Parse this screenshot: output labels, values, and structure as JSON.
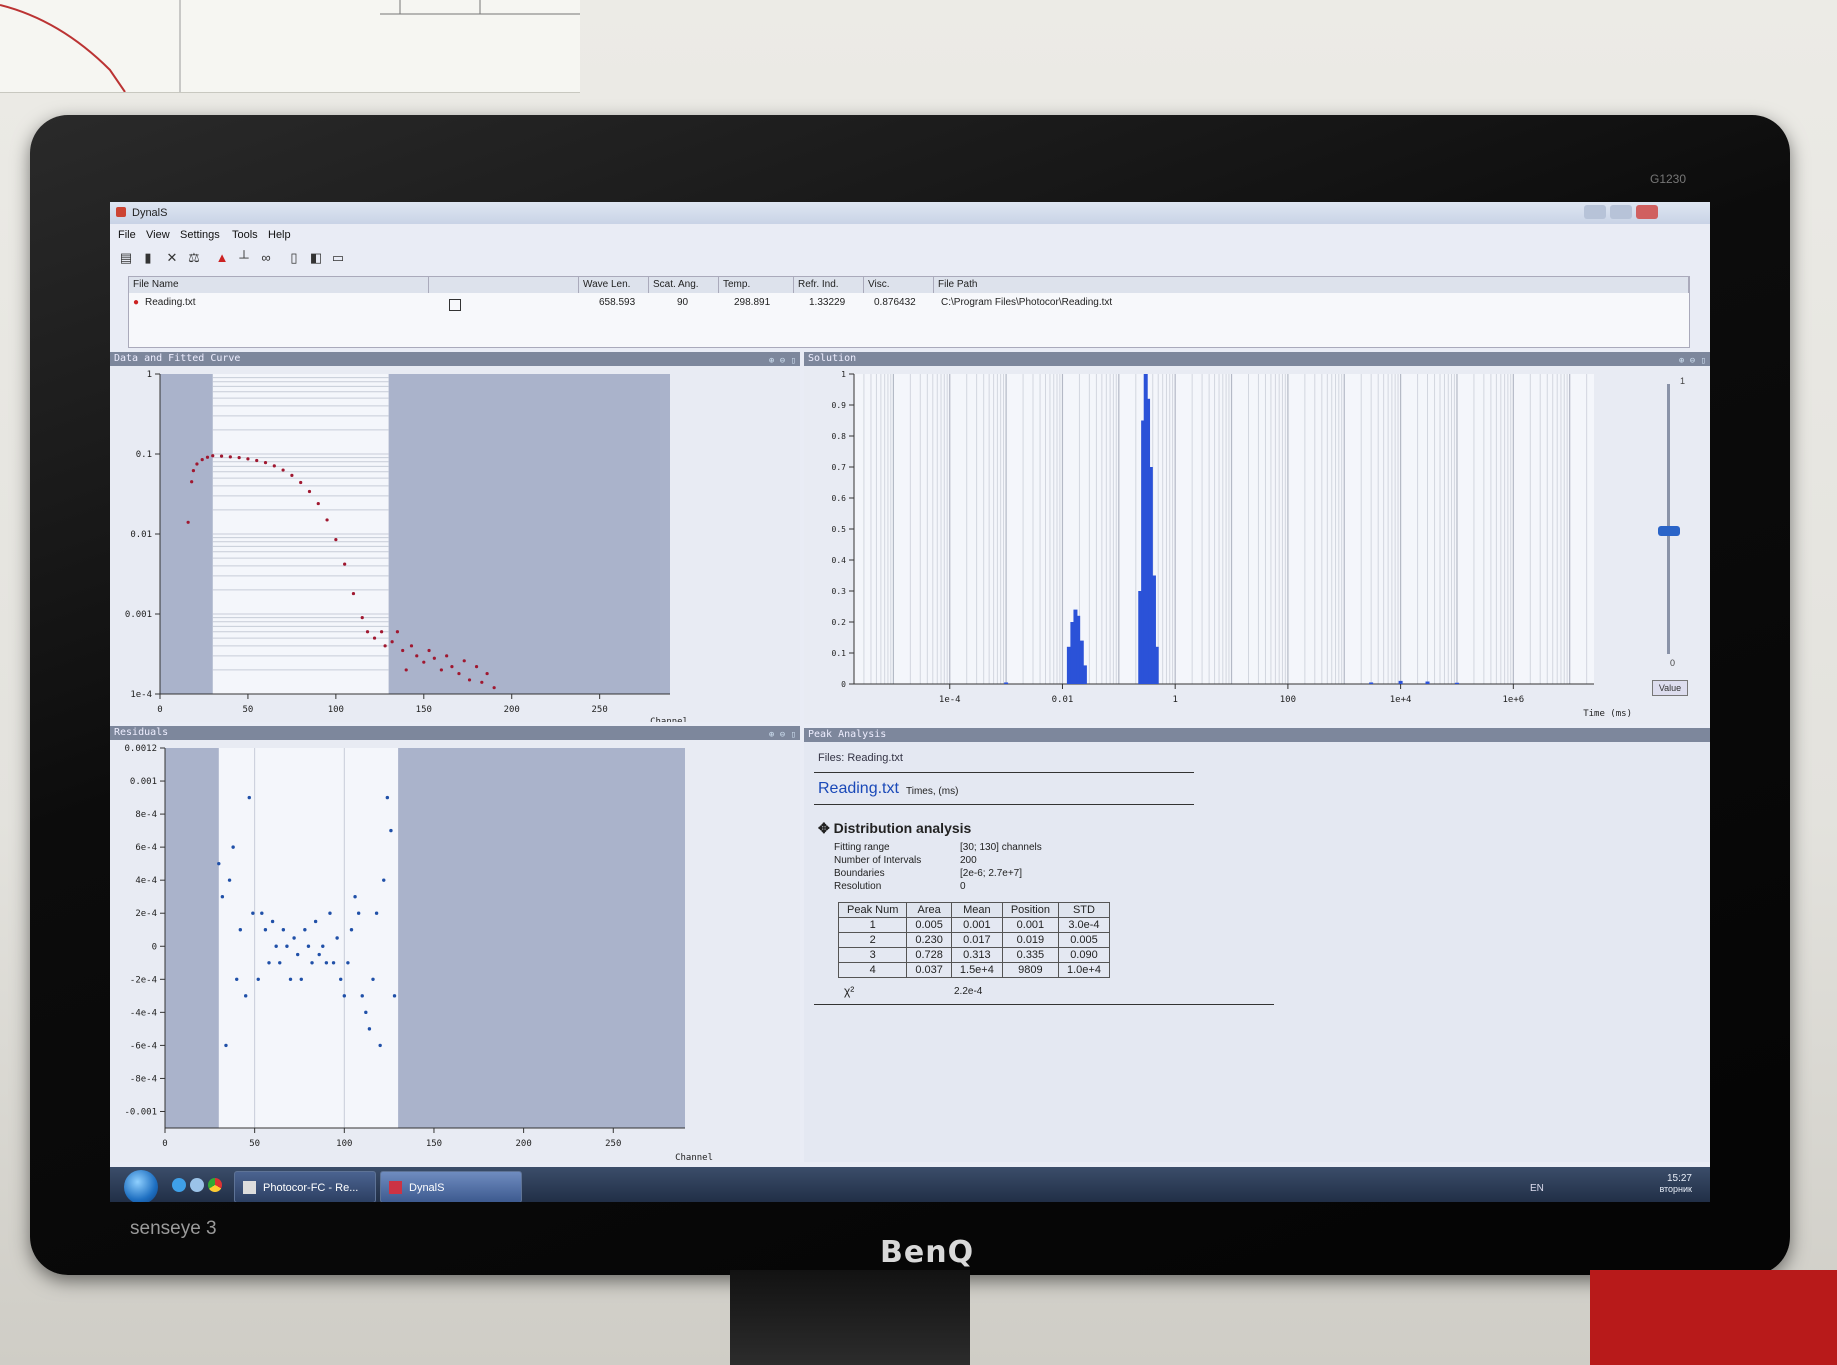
{
  "window": {
    "title": "DynalS"
  },
  "menu": [
    "File",
    "View",
    "Settings",
    "Tools",
    "Help"
  ],
  "toolbar_icons": [
    "open-icon",
    "delete-icon",
    "tools-icon",
    "scale-icon",
    "histogram-icon",
    "bar-chart-icon",
    "link-icon",
    "document-icon",
    "preview-icon",
    "print-icon"
  ],
  "file_table": {
    "headers": {
      "file_name": "File Name",
      "wave_len": "Wave Len.",
      "scat_ang": "Scat. Ang.",
      "temp": "Temp.",
      "refr_ind": "Refr. Ind.",
      "visc": "Visc.",
      "file_path": "File Path"
    },
    "row": {
      "file_name": "Reading.txt",
      "wave_len": "658.593",
      "scat_ang": "90",
      "temp": "298.891",
      "refr_ind": "1.33229",
      "visc": "0.876432",
      "file_path": "C:\\Program Files\\Photocor\\Reading.txt"
    }
  },
  "panels": {
    "fit": {
      "title": "Data and Fitted Curve"
    },
    "residuals": {
      "title": "Residuals"
    },
    "solution": {
      "title": "Solution"
    },
    "peak_analysis": {
      "title": "Peak Analysis"
    }
  },
  "peak_analysis": {
    "files_line": "Files: Reading.txt",
    "file_title": "Reading.txt",
    "times_unit": "Times, (ms)",
    "section_title": "Distribution analysis",
    "params": [
      {
        "label": "Fitting range",
        "value": "[30; 130] channels"
      },
      {
        "label": "Number of Intervals",
        "value": "200"
      },
      {
        "label": "Boundaries",
        "value": "[2e-6; 2.7e+7]"
      },
      {
        "label": "Resolution",
        "value": "0"
      }
    ],
    "table": {
      "headers": [
        "Peak Num",
        "Area",
        "Mean",
        "Position",
        "STD"
      ],
      "rows": [
        [
          "1",
          "0.005",
          "0.001",
          "0.001",
          "3.0e-4"
        ],
        [
          "2",
          "0.230",
          "0.017",
          "0.019",
          "0.005"
        ],
        [
          "3",
          "0.728",
          "0.313",
          "0.335",
          "0.090"
        ],
        [
          "4",
          "0.037",
          "1.5e+4",
          "9809",
          "1.0e+4"
        ]
      ]
    },
    "chi_label": "χ²",
    "chi_value": "2.2e-4"
  },
  "chart_data": [
    {
      "type": "scatter",
      "panel": "Data and Fitted Curve",
      "xlabel": "Channel",
      "x_ticks": [
        "0",
        "50",
        "100",
        "150",
        "200",
        "250"
      ],
      "y_ticks": [
        "1",
        "0.1",
        "0.01",
        "0.001",
        "1e-4"
      ],
      "xlim": [
        0,
        290
      ],
      "ylim": [
        0.0001,
        1
      ],
      "y_scale": "log",
      "fit_range": [
        30,
        130
      ],
      "points": [
        [
          16,
          0.014
        ],
        [
          18,
          0.045
        ],
        [
          19,
          0.062
        ],
        [
          21,
          0.075
        ],
        [
          24,
          0.085
        ],
        [
          27,
          0.091
        ],
        [
          30,
          0.095
        ],
        [
          35,
          0.094
        ],
        [
          40,
          0.092
        ],
        [
          45,
          0.09
        ],
        [
          50,
          0.087
        ],
        [
          55,
          0.083
        ],
        [
          60,
          0.078
        ],
        [
          65,
          0.071
        ],
        [
          70,
          0.063
        ],
        [
          75,
          0.054
        ],
        [
          80,
          0.044
        ],
        [
          85,
          0.034
        ],
        [
          90,
          0.024
        ],
        [
          95,
          0.015
        ],
        [
          100,
          0.0085
        ],
        [
          105,
          0.0042
        ],
        [
          110,
          0.0018
        ],
        [
          115,
          0.0009
        ],
        [
          118,
          0.0006
        ],
        [
          122,
          0.0005
        ],
        [
          126,
          0.0006
        ],
        [
          128,
          0.0004
        ],
        [
          132,
          0.00045
        ],
        [
          135,
          0.0006
        ],
        [
          138,
          0.00035
        ],
        [
          140,
          0.0002
        ],
        [
          143,
          0.0004
        ],
        [
          146,
          0.0003
        ],
        [
          150,
          0.00025
        ],
        [
          153,
          0.00035
        ],
        [
          156,
          0.00028
        ],
        [
          160,
          0.0002
        ],
        [
          163,
          0.0003
        ],
        [
          166,
          0.00022
        ],
        [
          170,
          0.00018
        ],
        [
          173,
          0.00026
        ],
        [
          176,
          0.00015
        ],
        [
          180,
          0.00022
        ],
        [
          183,
          0.00014
        ],
        [
          186,
          0.00018
        ],
        [
          190,
          0.00012
        ]
      ]
    },
    {
      "type": "scatter",
      "panel": "Residuals",
      "xlabel": "Channel",
      "x_ticks": [
        "0",
        "50",
        "100",
        "150",
        "200",
        "250"
      ],
      "y_ticks": [
        "0.0012",
        "0.001",
        "8e-4",
        "6e-4",
        "4e-4",
        "2e-4",
        "0",
        "-2e-4",
        "-4e-4",
        "-6e-4",
        "-8e-4",
        "-0.001"
      ],
      "xlim": [
        0,
        290
      ],
      "ylim": [
        -0.0011,
        0.0012
      ],
      "fit_range": [
        30,
        130
      ],
      "points": [
        [
          30,
          0.0005
        ],
        [
          32,
          0.0003
        ],
        [
          34,
          -0.0006
        ],
        [
          36,
          0.0004
        ],
        [
          38,
          0.0006
        ],
        [
          40,
          -0.0002
        ],
        [
          42,
          0.0001
        ],
        [
          45,
          -0.0003
        ],
        [
          47,
          0.0009
        ],
        [
          49,
          0.0002
        ],
        [
          52,
          -0.0002
        ],
        [
          54,
          0.0002
        ],
        [
          56,
          0.0001
        ],
        [
          58,
          -0.0001
        ],
        [
          60,
          0.00015
        ],
        [
          62,
          0.0
        ],
        [
          64,
          -0.0001
        ],
        [
          66,
          0.0001
        ],
        [
          68,
          0.0
        ],
        [
          70,
          -0.0002
        ],
        [
          72,
          5e-05
        ],
        [
          74,
          -5e-05
        ],
        [
          76,
          -0.0002
        ],
        [
          78,
          0.0001
        ],
        [
          80,
          0.0
        ],
        [
          82,
          -0.0001
        ],
        [
          84,
          0.00015
        ],
        [
          86,
          -5e-05
        ],
        [
          88,
          0.0
        ],
        [
          90,
          -0.0001
        ],
        [
          92,
          0.0002
        ],
        [
          94,
          -0.0001
        ],
        [
          96,
          5e-05
        ],
        [
          98,
          -0.0002
        ],
        [
          100,
          -0.0003
        ],
        [
          102,
          -0.0001
        ],
        [
          104,
          0.0001
        ],
        [
          106,
          0.0003
        ],
        [
          108,
          0.0002
        ],
        [
          110,
          -0.0003
        ],
        [
          112,
          -0.0004
        ],
        [
          114,
          -0.0005
        ],
        [
          116,
          -0.0002
        ],
        [
          118,
          0.0002
        ],
        [
          120,
          -0.0006
        ],
        [
          122,
          0.0004
        ],
        [
          124,
          0.0009
        ],
        [
          126,
          0.0007
        ],
        [
          128,
          -0.0003
        ]
      ]
    },
    {
      "type": "bar",
      "panel": "Solution",
      "xlabel": "Time (ms)",
      "x_ticks": [
        "1e-4",
        "0.01",
        "1",
        "100",
        "1e+4",
        "1e+6"
      ],
      "y_ticks": [
        "0",
        "0.1",
        "0.2",
        "0.3",
        "0.4",
        "0.5",
        "0.6",
        "0.7",
        "0.8",
        "0.9",
        "1"
      ],
      "x_scale": "log",
      "xlim": [
        2e-06,
        27000000
      ],
      "ylim": [
        0,
        1
      ],
      "bars": [
        [
          0.001,
          0.005
        ],
        [
          0.013,
          0.12
        ],
        [
          0.015,
          0.2
        ],
        [
          0.017,
          0.24
        ],
        [
          0.019,
          0.22
        ],
        [
          0.022,
          0.14
        ],
        [
          0.025,
          0.06
        ],
        [
          0.24,
          0.3
        ],
        [
          0.27,
          0.85
        ],
        [
          0.3,
          1.0
        ],
        [
          0.33,
          0.92
        ],
        [
          0.37,
          0.7
        ],
        [
          0.42,
          0.35
        ],
        [
          0.47,
          0.12
        ],
        [
          3000,
          0.005
        ],
        [
          10000,
          0.01
        ],
        [
          30000,
          0.008
        ],
        [
          100000,
          0.004
        ]
      ]
    }
  ],
  "slider": {
    "value_label": "Value",
    "top_label": "1",
    "bottom_label": "0"
  },
  "taskbar": {
    "items": [
      "Photocor-FC - Re...",
      "DynalS"
    ],
    "lang": "EN",
    "time": "15:27",
    "day": "вторник"
  },
  "monitor": {
    "brand": "BenQ",
    "model": "G1230",
    "sensor": "senseye 3"
  }
}
